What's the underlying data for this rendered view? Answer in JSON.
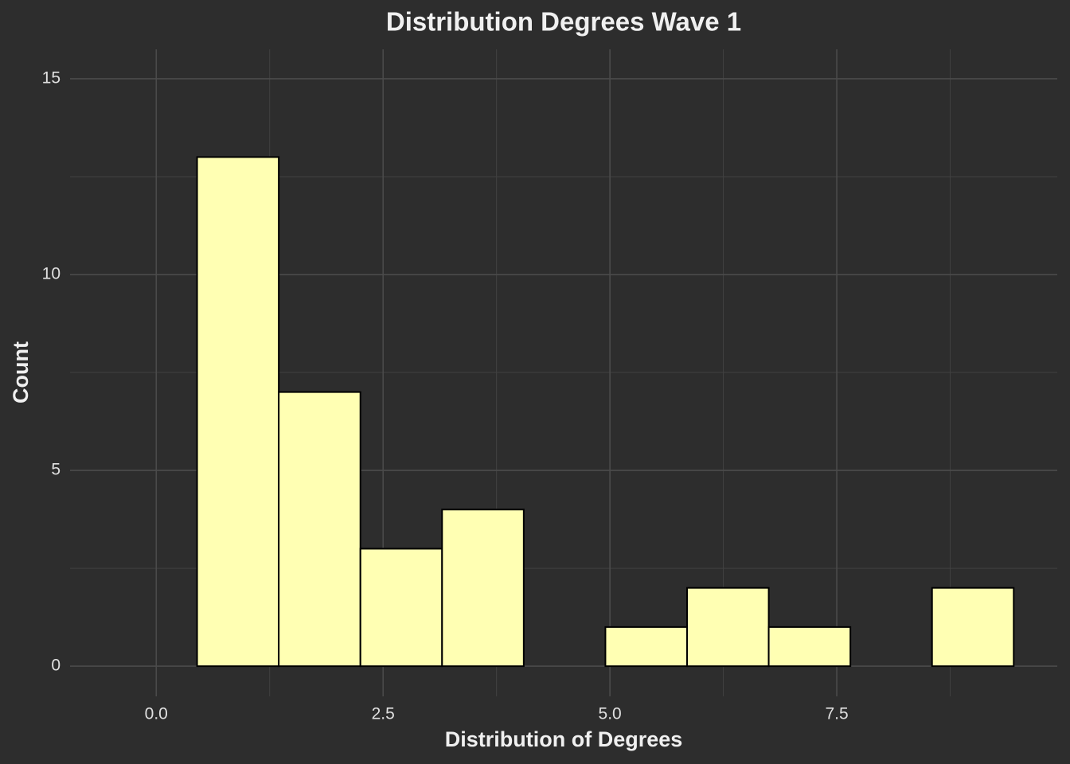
{
  "chart_data": {
    "type": "histogram",
    "title": "Distribution Degrees Wave 1",
    "x_label": "Distribution of Degrees",
    "y_label": "Count",
    "bins": [
      0.45,
      1.35,
      2.25,
      3.15,
      4.05,
      4.95,
      5.85,
      6.75,
      7.65,
      8.55,
      9.45
    ],
    "counts": [
      13,
      7,
      3,
      4,
      0,
      1,
      2,
      1,
      0,
      2
    ],
    "color": "#ffffb3",
    "edge_color": "#000000",
    "xlim": [
      -0.95,
      9.93
    ],
    "ylim": [
      -0.77,
      15.75
    ],
    "xticks": [
      {
        "value": 0,
        "label": "0.0"
      },
      2.5,
      {
        "value": 5,
        "label": "5.0"
      },
      7.5
    ],
    "yticks": [
      0,
      5,
      10,
      15
    ],
    "grid": true
  }
}
